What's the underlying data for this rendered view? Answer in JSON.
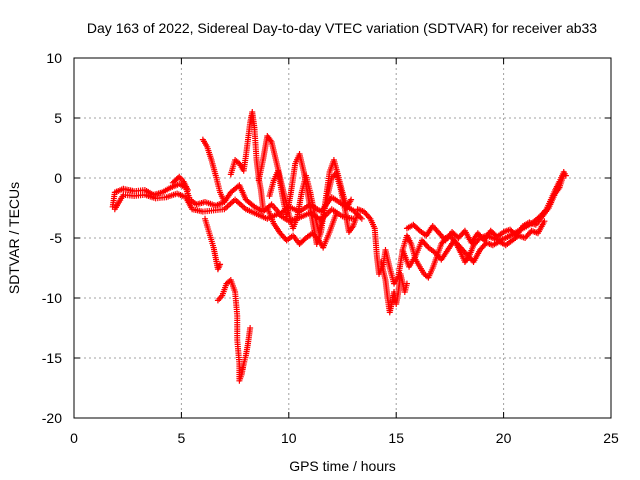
{
  "chart_data": {
    "type": "scatter",
    "title": "Day 163 of 2022, Sidereal Day-to-day VTEC variation (SDTVAR) for receiver ab33",
    "xlabel": "GPS time / hours",
    "ylabel": "SDTVAR / TECUs",
    "xlim": [
      0,
      25
    ],
    "ylim": [
      -20,
      10
    ],
    "xticks": [
      0,
      5,
      10,
      15,
      20,
      25
    ],
    "yticks": [
      10,
      5,
      0,
      -5,
      -10,
      -15,
      -20
    ],
    "xtick_labels": [
      "0",
      "5",
      "10",
      "15",
      "20",
      "25"
    ],
    "ytick_labels": [
      "10",
      "5",
      "0",
      "-5",
      "-10",
      "-15",
      "-20"
    ],
    "grid": true,
    "marker": "+",
    "series": [
      {
        "name": "ab33",
        "color": "#ff0000",
        "tracks": [
          [
            [
              1.8,
              -2.4
            ],
            [
              1.9,
              -1.2
            ],
            [
              2.3,
              -0.9
            ],
            [
              2.8,
              -1.1
            ],
            [
              3.3,
              -1.0
            ],
            [
              3.7,
              -1.4
            ],
            [
              4.1,
              -1.2
            ],
            [
              4.5,
              -0.8
            ],
            [
              4.9,
              -0.5
            ],
            [
              5.2,
              -0.8
            ],
            [
              5.4,
              -1.8
            ],
            [
              5.7,
              -2.2
            ],
            [
              6.1,
              -2.0
            ],
            [
              6.6,
              -2.3
            ],
            [
              7.0,
              -2.0
            ],
            [
              7.3,
              -1.2
            ],
            [
              7.7,
              -0.6
            ],
            [
              8.0,
              -1.8
            ],
            [
              8.4,
              -2.4
            ],
            [
              8.8,
              -2.8
            ],
            [
              9.2,
              -2.2
            ],
            [
              9.6,
              -3.0
            ],
            [
              10.0,
              -2.4
            ],
            [
              10.5,
              -2.8
            ],
            [
              11.0,
              -2.2
            ],
            [
              11.5,
              -2.8
            ],
            [
              12.0,
              -1.6
            ],
            [
              12.5,
              -2.2
            ],
            [
              13.0,
              -2.7
            ],
            [
              13.4,
              -3.4
            ]
          ],
          [
            [
              1.9,
              -2.6
            ],
            [
              2.3,
              -1.4
            ],
            [
              2.8,
              -1.5
            ],
            [
              3.3,
              -1.4
            ],
            [
              3.8,
              -1.7
            ],
            [
              4.3,
              -1.6
            ],
            [
              4.8,
              -1.3
            ],
            [
              5.2,
              -1.6
            ],
            [
              5.5,
              -2.6
            ],
            [
              6.0,
              -2.8
            ],
            [
              6.5,
              -2.7
            ],
            [
              7.0,
              -2.6
            ],
            [
              7.5,
              -1.8
            ],
            [
              8.0,
              -2.6
            ],
            [
              8.5,
              -3.0
            ],
            [
              9.0,
              -3.4
            ],
            [
              9.5,
              -3.0
            ],
            [
              10.0,
              -3.6
            ],
            [
              10.5,
              -3.3
            ],
            [
              11.0,
              -2.9
            ],
            [
              11.5,
              -3.5
            ],
            [
              12.0,
              -2.6
            ],
            [
              12.5,
              -3.2
            ],
            [
              13.0,
              -3.4
            ]
          ],
          [
            [
              4.6,
              -0.4
            ],
            [
              4.9,
              0.1
            ],
            [
              5.1,
              -0.3
            ],
            [
              5.3,
              -1.0
            ]
          ],
          [
            [
              6.0,
              3.2
            ],
            [
              6.2,
              2.6
            ],
            [
              6.4,
              1.5
            ],
            [
              6.6,
              0.2
            ],
            [
              6.8,
              -1.2
            ],
            [
              7.0,
              -2.0
            ]
          ],
          [
            [
              6.1,
              -3.4
            ],
            [
              6.3,
              -4.6
            ],
            [
              6.5,
              -5.8
            ],
            [
              6.7,
              -7.6
            ],
            [
              6.8,
              -7.2
            ]
          ],
          [
            [
              6.7,
              -10.2
            ],
            [
              6.9,
              -9.8
            ],
            [
              7.1,
              -8.8
            ],
            [
              7.3,
              -8.5
            ],
            [
              7.5,
              -9.5
            ],
            [
              7.6,
              -11.5
            ],
            [
              7.6,
              -13.5
            ],
            [
              7.7,
              -15.5
            ],
            [
              7.7,
              -16.9
            ],
            [
              7.8,
              -16.4
            ],
            [
              7.9,
              -15.5
            ],
            [
              8.0,
              -14.8
            ],
            [
              8.1,
              -13.8
            ],
            [
              8.2,
              -12.5
            ]
          ],
          [
            [
              7.3,
              0.3
            ],
            [
              7.5,
              1.5
            ],
            [
              7.7,
              1.2
            ],
            [
              7.9,
              0.6
            ],
            [
              8.0,
              1.8
            ],
            [
              8.1,
              3.2
            ],
            [
              8.2,
              4.6
            ],
            [
              8.3,
              5.5
            ],
            [
              8.4,
              4.2
            ],
            [
              8.5,
              1.5
            ],
            [
              8.6,
              0.0
            ],
            [
              8.7,
              -1.0
            ],
            [
              8.8,
              -2.5
            ]
          ],
          [
            [
              8.6,
              -0.2
            ],
            [
              8.8,
              1.5
            ],
            [
              9.0,
              3.5
            ],
            [
              9.2,
              3.0
            ],
            [
              9.4,
              1.5
            ],
            [
              9.6,
              0.0
            ],
            [
              9.8,
              -1.5
            ],
            [
              10.0,
              -3.0
            ],
            [
              10.2,
              -4.2
            ],
            [
              10.4,
              -3.2
            ],
            [
              10.6,
              -1.2
            ],
            [
              10.8,
              0.2
            ],
            [
              11.0,
              -1.2
            ],
            [
              11.2,
              -3.0
            ],
            [
              11.4,
              -4.5
            ],
            [
              11.6,
              -3.2
            ],
            [
              11.8,
              -1.5
            ],
            [
              12.0,
              0.0
            ],
            [
              12.2,
              0.4
            ],
            [
              12.4,
              -0.8
            ],
            [
              12.6,
              -2.5
            ],
            [
              12.8,
              -4.5
            ],
            [
              13.0,
              -4.0
            ],
            [
              13.2,
              -3.0
            ]
          ],
          [
            [
              9.1,
              -1.5
            ],
            [
              9.3,
              -0.2
            ],
            [
              9.5,
              0.6
            ],
            [
              9.7,
              -1.5
            ],
            [
              9.9,
              -3.2
            ],
            [
              10.1,
              -1.2
            ],
            [
              10.3,
              1.2
            ],
            [
              10.5,
              2.0
            ],
            [
              10.7,
              0.5
            ],
            [
              10.9,
              -1.5
            ],
            [
              11.1,
              -3.5
            ],
            [
              11.3,
              -5.5
            ],
            [
              11.5,
              -4.5
            ],
            [
              11.7,
              -2.0
            ],
            [
              11.9,
              0.5
            ],
            [
              12.1,
              1.5
            ],
            [
              12.3,
              0.2
            ],
            [
              12.5,
              -1.2
            ],
            [
              12.7,
              -2.5
            ],
            [
              12.9,
              -1.8
            ]
          ],
          [
            [
              9.0,
              -2.5
            ],
            [
              9.3,
              -3.8
            ],
            [
              9.6,
              -4.6
            ],
            [
              9.9,
              -5.2
            ],
            [
              10.2,
              -4.8
            ],
            [
              10.5,
              -5.5
            ],
            [
              10.8,
              -5.0
            ],
            [
              11.1,
              -4.6
            ],
            [
              11.4,
              -5.2
            ],
            [
              11.6,
              -5.8
            ],
            [
              11.9,
              -4.5
            ],
            [
              12.2,
              -3.0
            ]
          ],
          [
            [
              13.2,
              -2.6
            ],
            [
              13.5,
              -2.8
            ],
            [
              13.8,
              -3.4
            ],
            [
              14.0,
              -4.2
            ],
            [
              14.1,
              -6.5
            ],
            [
              14.2,
              -8.0
            ],
            [
              14.4,
              -7.2
            ],
            [
              14.5,
              -6.0
            ],
            [
              14.7,
              -7.5
            ],
            [
              14.9,
              -8.8
            ],
            [
              15.1,
              -8.2
            ],
            [
              15.3,
              -6.0
            ],
            [
              15.5,
              -4.8
            ],
            [
              15.7,
              -5.5
            ],
            [
              15.9,
              -6.8
            ],
            [
              16.1,
              -7.4
            ],
            [
              16.3,
              -8.0
            ],
            [
              16.5,
              -8.3
            ],
            [
              16.7,
              -7.5
            ],
            [
              16.9,
              -6.5
            ],
            [
              17.1,
              -5.5
            ],
            [
              17.3,
              -5.0
            ],
            [
              17.5,
              -4.8
            ],
            [
              17.8,
              -5.5
            ],
            [
              18.0,
              -6.2
            ],
            [
              18.2,
              -7.0
            ],
            [
              18.4,
              -6.5
            ],
            [
              18.6,
              -5.6
            ],
            [
              18.9,
              -5.0
            ],
            [
              19.2,
              -4.8
            ],
            [
              19.5,
              -5.0
            ],
            [
              19.8,
              -5.2
            ],
            [
              20.1,
              -5.0
            ],
            [
              20.5,
              -4.6
            ],
            [
              20.9,
              -4.2
            ],
            [
              21.3,
              -3.8
            ],
            [
              21.7,
              -3.2
            ],
            [
              22.0,
              -2.6
            ],
            [
              22.2,
              -1.8
            ],
            [
              22.4,
              -1.0
            ],
            [
              22.6,
              -0.3
            ],
            [
              22.8,
              0.5
            ],
            [
              22.9,
              0.2
            ]
          ],
          [
            [
              14.3,
              -7.0
            ],
            [
              14.5,
              -8.5
            ],
            [
              14.6,
              -10.0
            ],
            [
              14.7,
              -11.2
            ],
            [
              14.8,
              -10.4
            ],
            [
              14.9,
              -9.5
            ],
            [
              15.0,
              -10.5
            ],
            [
              15.1,
              -9.5
            ],
            [
              15.2,
              -8.0
            ],
            [
              15.4,
              -9.5
            ],
            [
              15.5,
              -8.8
            ]
          ],
          [
            [
              15.5,
              -4.2
            ],
            [
              15.8,
              -3.9
            ],
            [
              16.1,
              -4.4
            ],
            [
              16.4,
              -4.8
            ],
            [
              16.7,
              -4.0
            ],
            [
              17.0,
              -4.6
            ],
            [
              17.3,
              -5.2
            ],
            [
              17.6,
              -4.5
            ],
            [
              17.9,
              -5.0
            ],
            [
              18.2,
              -4.4
            ],
            [
              18.5,
              -5.4
            ],
            [
              18.8,
              -4.6
            ],
            [
              19.1,
              -5.2
            ],
            [
              19.4,
              -4.4
            ],
            [
              19.7,
              -4.9
            ],
            [
              20.0,
              -4.5
            ],
            [
              20.3,
              -4.3
            ],
            [
              20.6,
              -4.8
            ],
            [
              20.9,
              -4.0
            ],
            [
              21.2,
              -3.7
            ],
            [
              21.5,
              -3.9
            ],
            [
              21.8,
              -3.2
            ],
            [
              22.1,
              -2.5
            ],
            [
              22.4,
              -1.3
            ],
            [
              22.6,
              -0.8
            ],
            [
              22.8,
              0.3
            ]
          ],
          [
            [
              15.3,
              -6.0
            ],
            [
              15.6,
              -7.4
            ],
            [
              15.9,
              -6.5
            ],
            [
              16.2,
              -5.2
            ],
            [
              16.5,
              -5.8
            ],
            [
              16.8,
              -6.2
            ],
            [
              17.1,
              -6.8
            ],
            [
              17.4,
              -6.0
            ],
            [
              17.7,
              -5.2
            ],
            [
              18.0,
              -5.8
            ],
            [
              18.3,
              -6.4
            ],
            [
              18.6,
              -7.0
            ],
            [
              18.9,
              -6.0
            ],
            [
              19.2,
              -5.4
            ],
            [
              19.5,
              -5.6
            ],
            [
              19.8,
              -5.3
            ],
            [
              20.1,
              -5.6
            ],
            [
              20.4,
              -5.2
            ],
            [
              20.7,
              -4.8
            ],
            [
              21.0,
              -5.0
            ],
            [
              21.3,
              -4.4
            ],
            [
              21.6,
              -4.6
            ],
            [
              21.9,
              -3.6
            ]
          ]
        ]
      }
    ]
  }
}
